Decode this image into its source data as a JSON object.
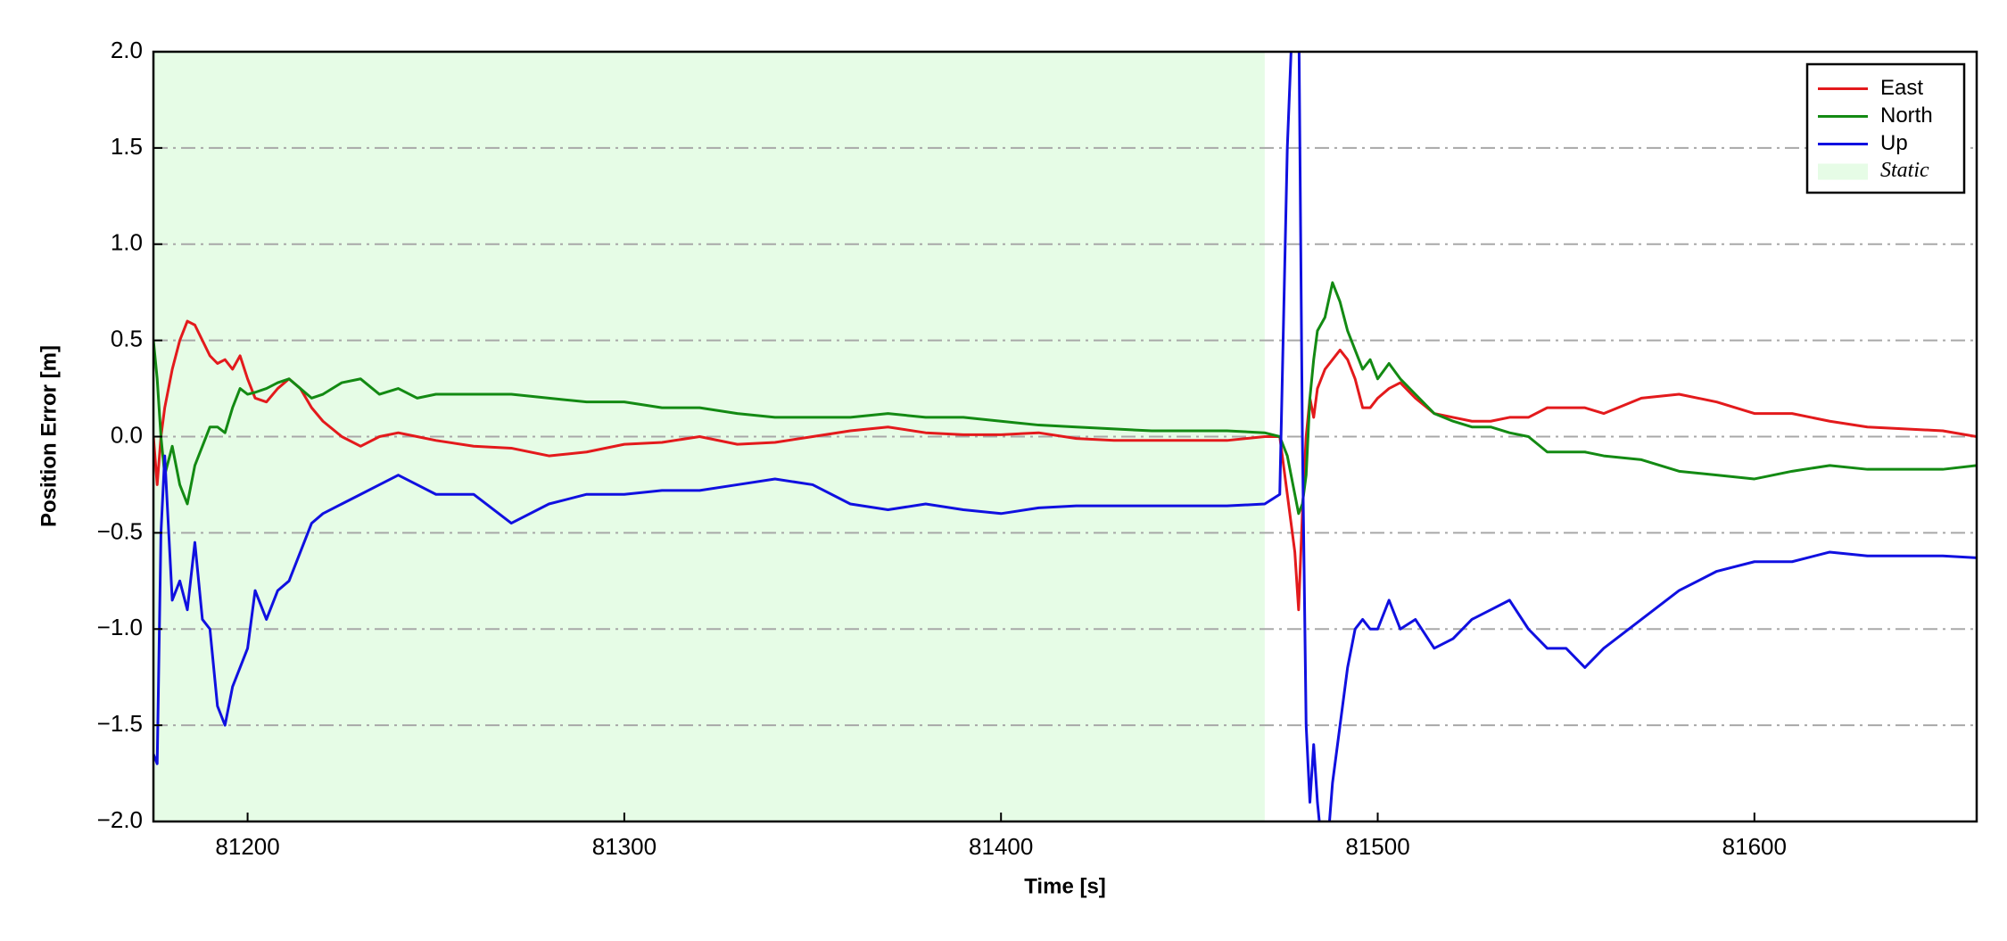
{
  "chart_data": {
    "type": "line",
    "x_label": "Time [s]",
    "y_label": "Position Error [m]",
    "xlim": [
      81175,
      81659
    ],
    "ylim": [
      -2,
      2
    ],
    "xticks": [
      81200,
      81300,
      81400,
      81500,
      81600
    ],
    "yticks": [
      {
        "value": -2,
        "label": "−2.0"
      },
      {
        "value": -1.5,
        "label": "−1.5"
      },
      {
        "value": -1,
        "label": "−1.0"
      },
      {
        "value": -0.5,
        "label": "−0.5"
      },
      {
        "value": 0,
        "label": "0.0"
      },
      0.5,
      {
        "value": 1,
        "label": "1.0"
      },
      1.5,
      {
        "value": 2,
        "label": "2.0"
      }
    ],
    "grid": "y",
    "legend": "upper right",
    "shaded_regions": [
      {
        "name": "Static",
        "start": 81175,
        "end": 81470,
        "color": "#e6fce6"
      }
    ],
    "x": [
      81175,
      81176,
      81177,
      81178,
      81180,
      81182,
      81184,
      81186,
      81188,
      81190,
      81192,
      81194,
      81196,
      81198,
      81200,
      81202,
      81205,
      81208,
      81211,
      81214,
      81217,
      81220,
      81225,
      81230,
      81235,
      81240,
      81245,
      81250,
      81260,
      81270,
      81280,
      81290,
      81300,
      81310,
      81320,
      81330,
      81340,
      81350,
      81360,
      81370,
      81380,
      81390,
      81400,
      81410,
      81420,
      81430,
      81440,
      81450,
      81460,
      81470,
      81474,
      81476,
      81478,
      81479,
      81480,
      81481,
      81482,
      81483,
      81484,
      81486,
      81488,
      81490,
      81492,
      81494,
      81496,
      81498,
      81500,
      81503,
      81506,
      81510,
      81515,
      81520,
      81525,
      81530,
      81535,
      81540,
      81545,
      81550,
      81555,
      81560,
      81570,
      81580,
      81590,
      81600,
      81610,
      81620,
      81630,
      81640,
      81650,
      81659
    ],
    "series": [
      {
        "name": "East",
        "color": "#e31a1c",
        "values": [
          0,
          -0.25,
          0,
          0.15,
          0.35,
          0.5,
          0.6,
          0.58,
          0.5,
          0.42,
          0.38,
          0.4,
          0.35,
          0.42,
          0.3,
          0.2,
          0.18,
          0.25,
          0.3,
          0.25,
          0.15,
          0.08,
          0,
          -0.05,
          0,
          0.02,
          0,
          -0.02,
          -0.05,
          -0.06,
          -0.1,
          -0.08,
          -0.04,
          -0.03,
          0,
          -0.04,
          -0.03,
          0,
          0.03,
          0.05,
          0.02,
          0.01,
          0.01,
          0.02,
          -0.01,
          -0.02,
          -0.02,
          -0.02,
          -0.02,
          0,
          0,
          -0.3,
          -0.6,
          -0.9,
          -0.4,
          0,
          0.2,
          0.1,
          0.25,
          0.35,
          0.4,
          0.45,
          0.4,
          0.3,
          0.15,
          0.15,
          0.2,
          0.25,
          0.28,
          0.2,
          0.12,
          0.1,
          0.08,
          0.08,
          0.1,
          0.1,
          0.15,
          0.15,
          0.15,
          0.12,
          0.2,
          0.22,
          0.18,
          0.12,
          0.12,
          0.08,
          0.05,
          0.04,
          0.03,
          0
        ]
      },
      {
        "name": "North",
        "color": "#138a13",
        "values": [
          0.5,
          0.3,
          0,
          -0.2,
          -0.05,
          -0.25,
          -0.35,
          -0.15,
          -0.05,
          0.05,
          0.05,
          0.02,
          0.15,
          0.25,
          0.22,
          0.23,
          0.25,
          0.28,
          0.3,
          0.25,
          0.2,
          0.22,
          0.28,
          0.3,
          0.22,
          0.25,
          0.2,
          0.22,
          0.22,
          0.22,
          0.2,
          0.18,
          0.18,
          0.15,
          0.15,
          0.12,
          0.1,
          0.1,
          0.1,
          0.12,
          0.1,
          0.1,
          0.08,
          0.06,
          0.05,
          0.04,
          0.03,
          0.03,
          0.03,
          0.02,
          0,
          -0.1,
          -0.3,
          -0.4,
          -0.35,
          -0.2,
          0.2,
          0.4,
          0.55,
          0.62,
          0.8,
          0.7,
          0.55,
          0.45,
          0.35,
          0.4,
          0.3,
          0.38,
          0.3,
          0.22,
          0.12,
          0.08,
          0.05,
          0.05,
          0.02,
          0,
          -0.08,
          -0.08,
          -0.08,
          -0.1,
          -0.12,
          -0.18,
          -0.2,
          -0.22,
          -0.18,
          -0.15,
          -0.17,
          -0.17,
          -0.17,
          -0.15
        ]
      },
      {
        "name": "Up",
        "color": "#1010e0",
        "values": [
          -1.65,
          -1.7,
          -0.5,
          -0.1,
          -0.85,
          -0.75,
          -0.9,
          -0.55,
          -0.95,
          -1.0,
          -1.4,
          -1.5,
          -1.3,
          -1.2,
          -1.1,
          -0.8,
          -0.95,
          -0.8,
          -0.75,
          -0.6,
          -0.45,
          -0.4,
          -0.35,
          -0.3,
          -0.25,
          -0.2,
          -0.25,
          -0.3,
          -0.3,
          -0.45,
          -0.35,
          -0.3,
          -0.3,
          -0.28,
          -0.28,
          -0.25,
          -0.22,
          -0.25,
          -0.35,
          -0.38,
          -0.35,
          -0.38,
          -0.4,
          -0.37,
          -0.36,
          -0.36,
          -0.36,
          -0.36,
          -0.36,
          -0.35,
          -0.3,
          1.5,
          2.5,
          2.3,
          0,
          -1.5,
          -1.9,
          -1.6,
          -1.9,
          -2.3,
          -1.8,
          -1.5,
          -1.2,
          -1.0,
          -0.95,
          -1.0,
          -1.0,
          -0.85,
          -1.0,
          -0.95,
          -1.1,
          -1.05,
          -0.95,
          -0.9,
          -0.85,
          -1.0,
          -1.1,
          -1.1,
          -1.2,
          -1.1,
          -0.95,
          -0.8,
          -0.7,
          -0.65,
          -0.65,
          -0.6,
          -0.62,
          -0.62,
          -0.62,
          -0.63
        ]
      }
    ]
  }
}
